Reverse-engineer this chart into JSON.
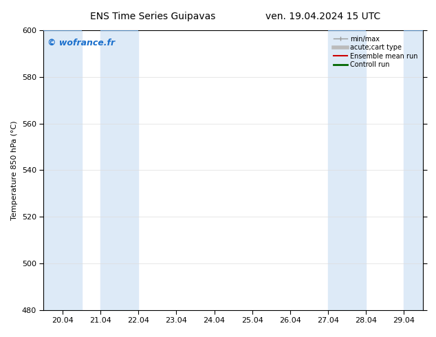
{
  "title_left": "ENS Time Series Guipavas",
  "title_right": "ven. 19.04.2024 15 UTC",
  "ylabel": "Temperature 850 hPa (°C)",
  "watermark": "© wofrance.fr",
  "watermark_color": "#1a6fcc",
  "ylim": [
    480,
    600
  ],
  "yticks": [
    480,
    500,
    520,
    540,
    560,
    580,
    600
  ],
  "xtick_labels": [
    "20.04",
    "21.04",
    "22.04",
    "23.04",
    "24.04",
    "25.04",
    "26.04",
    "27.04",
    "28.04",
    "29.04"
  ],
  "xtick_positions": [
    0,
    1,
    2,
    3,
    4,
    5,
    6,
    7,
    8,
    9
  ],
  "xlim": [
    -0.5,
    9.5
  ],
  "shaded_bands": [
    {
      "x_start": -0.5,
      "x_end": 0.5
    },
    {
      "x_start": 1.0,
      "x_end": 2.0
    },
    {
      "x_start": 7.0,
      "x_end": 8.0
    },
    {
      "x_start": 9.0,
      "x_end": 9.5
    }
  ],
  "band_color": "#ddeaf7",
  "top_line_color": "#5588bb",
  "legend_entries": [
    {
      "label": "min/max",
      "color": "#999999",
      "lw": 1
    },
    {
      "label": "acute;cart type",
      "color": "#bbbbbb",
      "lw": 4
    },
    {
      "label": "Ensemble mean run",
      "color": "#cc0000",
      "lw": 1.5
    },
    {
      "label": "Controll run",
      "color": "#006600",
      "lw": 2
    }
  ],
  "background_color": "#ffffff",
  "axes_bg_color": "#ffffff",
  "tick_fontsize": 8,
  "label_fontsize": 8,
  "title_fontsize": 10,
  "watermark_fontsize": 9
}
